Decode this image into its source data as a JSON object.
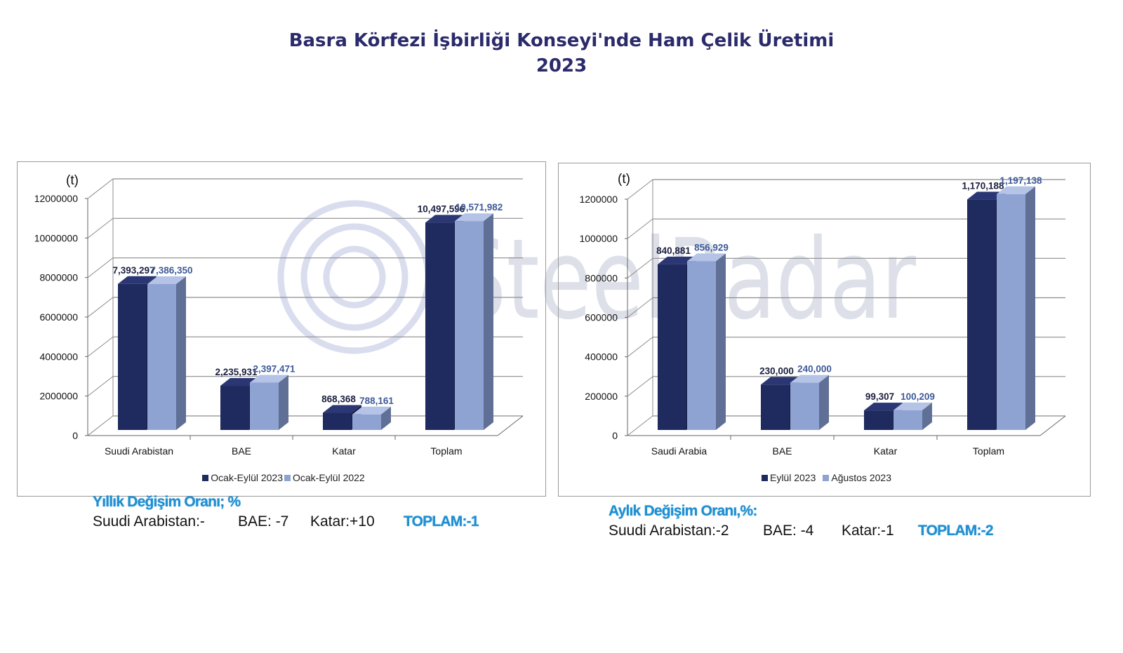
{
  "header": {
    "title_line1": "Basra Körfezi İşbirliği Konseyi'nde Ham Çelik Üretimi",
    "title_line2": "2023"
  },
  "watermark": {
    "text": "SteelRadar"
  },
  "colors": {
    "series_dark": "#1f2a5e",
    "series_light": "#8fa3d3",
    "title": "#2b2a6b",
    "accent": "#1f8fd1"
  },
  "chart_data": [
    {
      "type": "bar",
      "unit_label": "(t)",
      "categories": [
        "Suudi Arabistan",
        "BAE",
        "Katar",
        "Toplam"
      ],
      "ylim": [
        0,
        12000000
      ],
      "yticks": [
        "0",
        "2000000",
        "4000000",
        "6000000",
        "8000000",
        "10000000",
        "12000000"
      ],
      "grid": true,
      "legend_position": "bottom",
      "series": [
        {
          "name": "Ocak-Eylül 2023",
          "values": [
            7393297,
            2235931,
            868368,
            10497596
          ],
          "labels": [
            "7,393,297",
            "2,235,931",
            "868,368",
            "10,497,596"
          ]
        },
        {
          "name": "Ocak-Eylül 2022",
          "values": [
            7386350,
            2397471,
            788161,
            10571982
          ],
          "labels": [
            "7,386,350",
            "2,397,471",
            "788,161",
            "10,571,982"
          ]
        }
      ]
    },
    {
      "type": "bar",
      "unit_label": "(t)",
      "categories": [
        "Saudi Arabia",
        "BAE",
        "Katar",
        "Toplam"
      ],
      "ylim": [
        0,
        1200000
      ],
      "yticks": [
        "0",
        "200000",
        "400000",
        "600000",
        "800000",
        "1000000",
        "1200000"
      ],
      "grid": true,
      "legend_position": "bottom",
      "series": [
        {
          "name": "Eylül 2023",
          "values": [
            840881,
            230000,
            99307,
            1170188
          ],
          "labels": [
            "840,881",
            "230,000",
            "99,307",
            "1,170,188"
          ]
        },
        {
          "name": "Ağustos 2023",
          "values": [
            856929,
            240000,
            100209,
            1197138
          ],
          "labels": [
            "856,929",
            "240,000",
            "100,209",
            "1,197,138"
          ]
        }
      ]
    }
  ],
  "yearly_change": {
    "title": "Yıllık Değişim Oranı; %",
    "saudi": "Suudi Arabistan:-",
    "uae": "BAE: -7",
    "qatar": "Katar:+10",
    "total": "TOPLAM:-1"
  },
  "monthly_change": {
    "title": "Aylık Değişim Oranı,%:",
    "saudi": "Suudi Arabistan:-2",
    "uae": "BAE: -4",
    "qatar": "Katar:-1",
    "total": "TOPLAM:-2"
  }
}
